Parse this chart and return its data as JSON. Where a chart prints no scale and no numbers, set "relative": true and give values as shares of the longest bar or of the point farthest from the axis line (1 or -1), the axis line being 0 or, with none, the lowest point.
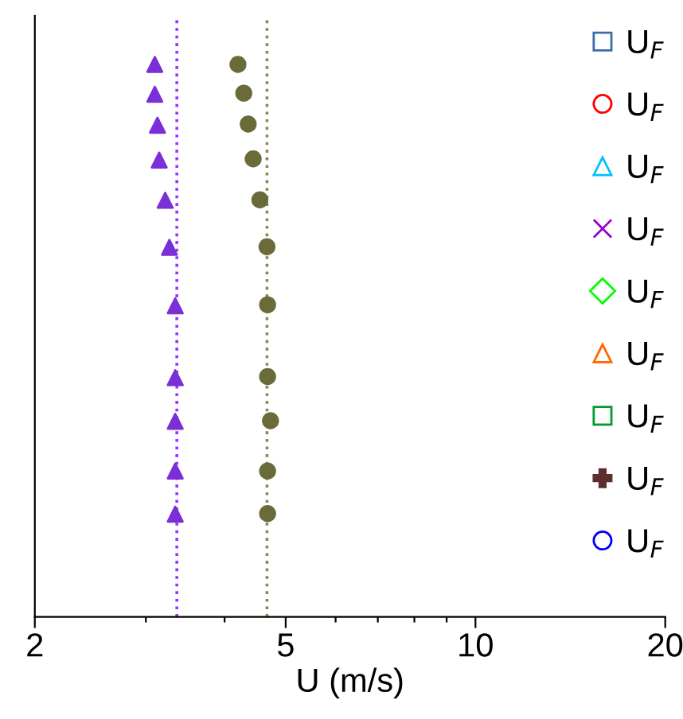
{
  "chart_data": {
    "type": "scatter",
    "xlabel": "U (m/s)",
    "relative": true,
    "log": "x",
    "xlim": [
      2,
      20
    ],
    "xticks": [
      2,
      {
        "value": 3,
        "label": null
      },
      {
        "value": 4,
        "label": null
      },
      5,
      {
        "value": 6,
        "label": null
      },
      {
        "value": 7,
        "label": null
      },
      {
        "value": 8,
        "label": null
      },
      {
        "value": 9,
        "label": null
      },
      10,
      20
    ],
    "grid": false,
    "legend": "top right",
    "series": [
      {
        "color": "#7b2fd6",
        "marker": "triangle",
        "x": [
          3.1,
          3.1,
          3.13,
          3.15,
          3.22,
          3.27,
          3.34,
          3.34,
          3.34,
          3.34,
          3.34
        ],
        "values": [
          1.0,
          0.946,
          0.89,
          0.827,
          0.754,
          0.669,
          0.563,
          0.433,
          0.354,
          0.264,
          0.186
        ]
      },
      {
        "color": "#6b6b3a",
        "marker": "circle",
        "x": [
          4.2,
          4.29,
          4.36,
          4.44,
          4.55,
          4.67,
          4.68,
          4.68,
          4.73,
          4.68,
          4.68
        ],
        "values": [
          1.0,
          0.948,
          0.892,
          0.829,
          0.755,
          0.67,
          0.565,
          0.435,
          0.355,
          0.264,
          0.187
        ]
      },
      {
        "name": "U$_{F}$",
        "color": "#3a6ea5",
        "marker": "square"
      },
      {
        "name": "U$_{F}$",
        "color": "#ff0000",
        "marker": "circle"
      },
      {
        "name": "U$_{F}$",
        "color": "#00bfff",
        "marker": "triangle"
      },
      {
        "name": "U$_{F}$",
        "color": "#9900cc",
        "marker": "cross"
      },
      {
        "name": "U$_{F}$",
        "color": "#00ff00",
        "marker": "diamond"
      },
      {
        "name": "U$_{F}$",
        "color": "#ff6600",
        "marker": "triangle"
      },
      {
        "name": "U$_{F}$",
        "color": "#009933",
        "marker": "square"
      },
      {
        "name": "U$_{F}$",
        "color": "#5c2e2e",
        "marker": "plus"
      },
      {
        "name": "U$_{F}$",
        "color": "#0000ff",
        "marker": "circle"
      }
    ],
    "ref_lines": [
      {
        "axis": "x",
        "value": 3.36,
        "color": "#9b30ff",
        "line_style": "dotted"
      },
      {
        "axis": "x",
        "value": 4.67,
        "color": "#8a8a50",
        "line_style": "dotted"
      }
    ]
  }
}
